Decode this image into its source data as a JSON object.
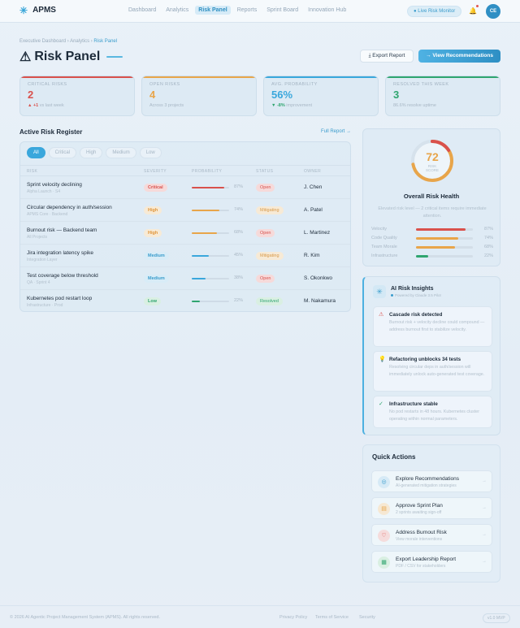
{
  "app": {
    "name": "APMS"
  },
  "nav": {
    "links": [
      "Dashboard",
      "Analytics",
      "Risk Panel",
      "Reports",
      "Sprint Board",
      "Innovation Hub"
    ],
    "active": "Risk Panel",
    "monitor_label": "● Live Risk Monitor",
    "avatar_initials": "CE"
  },
  "breadcrumb": {
    "items": [
      "Executive Dashboard",
      "Analytics"
    ],
    "current": "Risk Panel",
    "sep": "›"
  },
  "page": {
    "title_icon": "⚠",
    "title": "Risk Panel"
  },
  "actions": {
    "export_label": "Export Report",
    "recommend_label": "→ View Recommendations"
  },
  "stats": [
    {
      "label": "CRITICAL RISKS",
      "value": "2",
      "sub_delta": "▲ +1",
      "sub_text": " vs last week",
      "color": "#d9514c",
      "delta_color": "#d9514c"
    },
    {
      "label": "OPEN RISKS",
      "value": "4",
      "sub_delta": "",
      "sub_text": "Across 3 projects",
      "color": "#e8a54a",
      "delta_color": "#e8a54a"
    },
    {
      "label": "AVG. PROBABILITY",
      "value": "56%",
      "sub_delta": "▼ -8%",
      "sub_text": " improvement",
      "color": "#3aa7dc",
      "delta_color": "#2fa56f"
    },
    {
      "label": "RESOLVED THIS WEEK",
      "value": "3",
      "sub_delta": "",
      "sub_text": "86.6% resolve uptime",
      "color": "#2fa56f",
      "delta_color": "#2fa56f"
    }
  ],
  "register": {
    "title": "Active Risk Register",
    "full_report": "Full Report →",
    "filters": [
      "All",
      "Critical",
      "High",
      "Medium",
      "Low"
    ],
    "active_filter": "All",
    "columns": [
      "RISK",
      "SEVERITY",
      "PROBABILITY",
      "STATUS",
      "OWNER"
    ],
    "rows": [
      {
        "name": "Sprint velocity declining",
        "sub": "Alpha Launch · S4",
        "severity": "Critical",
        "prob": 87,
        "prob_label": "87%",
        "status": "Open",
        "owner": "J. Chen"
      },
      {
        "name": "Circular dependency in auth/session",
        "sub": "APMS Core · Backend",
        "severity": "High",
        "prob": 74,
        "prob_label": "74%",
        "status": "Mitigating",
        "owner": "A. Patel"
      },
      {
        "name": "Burnout risk — Backend team",
        "sub": "All Projects",
        "severity": "High",
        "prob": 68,
        "prob_label": "68%",
        "status": "Open",
        "owner": "L. Martinez"
      },
      {
        "name": "Jira integration latency spike",
        "sub": "Integration Layer",
        "severity": "Medium",
        "prob": 45,
        "prob_label": "45%",
        "status": "Mitigating",
        "owner": "R. Kim"
      },
      {
        "name": "Test coverage below threshold",
        "sub": "QA · Sprint 4",
        "severity": "Medium",
        "prob": 38,
        "prob_label": "38%",
        "status": "Open",
        "owner": "S. Okonkwo"
      },
      {
        "name": "Kubernetes pod restart loop",
        "sub": "Infrastructure · Prod",
        "severity": "Low",
        "prob": 22,
        "prob_label": "22%",
        "status": "Resolved",
        "owner": "M. Nakamura"
      }
    ]
  },
  "health": {
    "score": 72,
    "score_fraction": 0.72,
    "score_label_1": "RISK",
    "score_label_2": "SCORE",
    "title": "Overall Risk Health",
    "desc": "Elevated risk level — 2 critical items require immediate attention.",
    "metrics": [
      {
        "label": "Velocity",
        "value": 87,
        "value_label": "87%",
        "color": "#d9514c"
      },
      {
        "label": "Code Quality",
        "value": 74,
        "value_label": "74%",
        "color": "#e8a54a"
      },
      {
        "label": "Team Morale",
        "value": 68,
        "value_label": "68%",
        "color": "#e8a54a"
      },
      {
        "label": "Infrastructure",
        "value": 22,
        "value_label": "22%",
        "color": "#2fa56f"
      }
    ]
  },
  "ai": {
    "title": "AI Risk Insights",
    "sub": "Powered by Claude 3.5 Pilot",
    "insights": [
      {
        "icon": "⚠",
        "title": "Cascade risk detected",
        "desc": "Burnout risk + velocity decline could compound — address burnout first to stabilize velocity.",
        "color": "#d9514c"
      },
      {
        "icon": "💡",
        "title": "Refactoring unblocks 34 tests",
        "desc": "Resolving circular deps in auth/session will immediately unlock auto-generated test coverage.",
        "color": "#3aa7dc"
      },
      {
        "icon": "✓",
        "title": "Infrastructure stable",
        "desc": "No pod restarts in 48 hours. Kubernetes cluster operating within normal parameters.",
        "color": "#2fa56f"
      }
    ]
  },
  "quick_actions": {
    "title": "Quick Actions",
    "items": [
      {
        "title": "Explore Recommendations",
        "sub": "AI-generated mitigation strategies",
        "icon": "◎",
        "bg": "#d6eaf6",
        "fg": "#3a9ccc"
      },
      {
        "title": "Approve Sprint Plan",
        "sub": "2 sprints awaiting sign-off",
        "icon": "▤",
        "bg": "#f6e8d3",
        "fg": "#e8a54a"
      },
      {
        "title": "Address Burnout Risk",
        "sub": "View morale interventions",
        "icon": "♡",
        "bg": "#f5dcdc",
        "fg": "#d9514c"
      },
      {
        "title": "Export Leadership Report",
        "sub": "PDF / CSV for stakeholders",
        "icon": "▦",
        "bg": "#d9efe2",
        "fg": "#2fa56f"
      }
    ]
  },
  "footer": {
    "copy": "© 2026 AI Agentic Project Management System (APMS). All rights reserved.",
    "links": [
      "Privacy Policy",
      "Terms of Service",
      "Security"
    ],
    "version": "v1.0 MVP"
  },
  "colors": {
    "critical": "#d9514c",
    "high": "#e8a54a",
    "medium": "#3aa7dc",
    "low": "#2fa56f",
    "accent": "#3aa7dc"
  }
}
